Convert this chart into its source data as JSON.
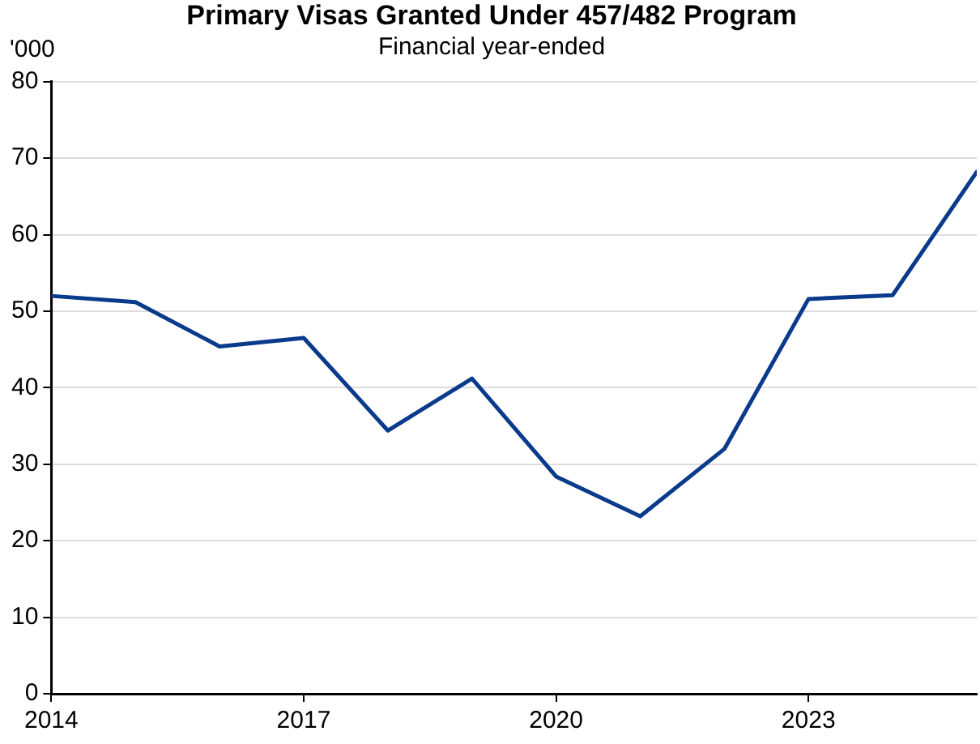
{
  "chart_data": {
    "type": "line",
    "title": "Primary Visas Granted Under 457/482 Program",
    "subtitle": "Financial year-ended",
    "ylabel": "'000",
    "x": [
      2014,
      2015,
      2016,
      2017,
      2018,
      2019,
      2020,
      2021,
      2022,
      2023,
      2024,
      2025
    ],
    "series": [
      {
        "color": "#0a3a8c",
        "values": [
          52,
          51.2,
          45.4,
          46.5,
          34.4,
          41.2,
          28.4,
          23.2,
          32.0,
          51.6,
          52.1,
          68.2
        ]
      }
    ],
    "xlim": [
      2014,
      2025
    ],
    "xticks": [
      2014,
      2017,
      2020,
      2023
    ],
    "ylim": [
      0,
      80
    ],
    "yticks": [
      0,
      10,
      20,
      30,
      40,
      50,
      60,
      70,
      80
    ],
    "grid": "y",
    "legend": false,
    "marker": "none",
    "line_style": "solid"
  }
}
